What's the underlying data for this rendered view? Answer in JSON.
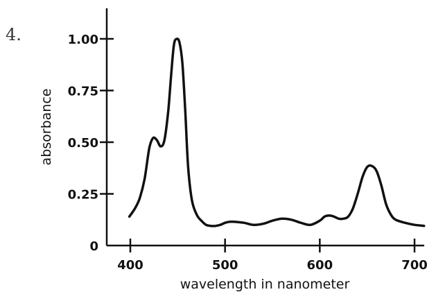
{
  "question": {
    "number_label": "4."
  },
  "chart_data": {
    "type": "line",
    "title": "",
    "xlabel": "wavelength in nanometer",
    "ylabel": "absorbance",
    "xlim": [
      400,
      710
    ],
    "ylim": [
      0,
      1.1
    ],
    "x_ticks": [
      400,
      500,
      600,
      700
    ],
    "x_tick_labels": [
      "400",
      "500",
      "600",
      "700"
    ],
    "y_ticks": [
      0,
      0.25,
      0.5,
      0.75,
      1.0
    ],
    "y_tick_labels": [
      "0",
      "0.25",
      "0.50",
      "0.75",
      "1.00"
    ],
    "grid": false,
    "legend": "none",
    "line_color": "#111111",
    "series": [
      {
        "x": [
          399,
          405,
          410,
          415,
          420,
          424,
          428,
          432,
          436,
          440,
          443,
          446,
          449,
          452,
          455,
          458,
          461,
          465,
          470,
          475,
          480,
          485,
          490,
          495,
          500,
          505,
          510,
          520,
          530,
          540,
          550,
          560,
          570,
          580,
          590,
          600,
          605,
          610,
          615,
          620,
          625,
          630,
          635,
          640,
          645,
          650,
          655,
          660,
          665,
          670,
          675,
          680,
          690,
          700,
          710
        ],
        "y": [
          0.14,
          0.18,
          0.23,
          0.32,
          0.47,
          0.52,
          0.51,
          0.48,
          0.51,
          0.65,
          0.82,
          0.97,
          1.0,
          0.98,
          0.88,
          0.65,
          0.38,
          0.22,
          0.15,
          0.12,
          0.1,
          0.095,
          0.095,
          0.1,
          0.11,
          0.115,
          0.115,
          0.11,
          0.1,
          0.105,
          0.12,
          0.13,
          0.125,
          0.11,
          0.1,
          0.12,
          0.14,
          0.145,
          0.14,
          0.13,
          0.13,
          0.14,
          0.18,
          0.25,
          0.33,
          0.38,
          0.385,
          0.36,
          0.29,
          0.2,
          0.15,
          0.125,
          0.11,
          0.1,
          0.095
        ]
      }
    ]
  }
}
